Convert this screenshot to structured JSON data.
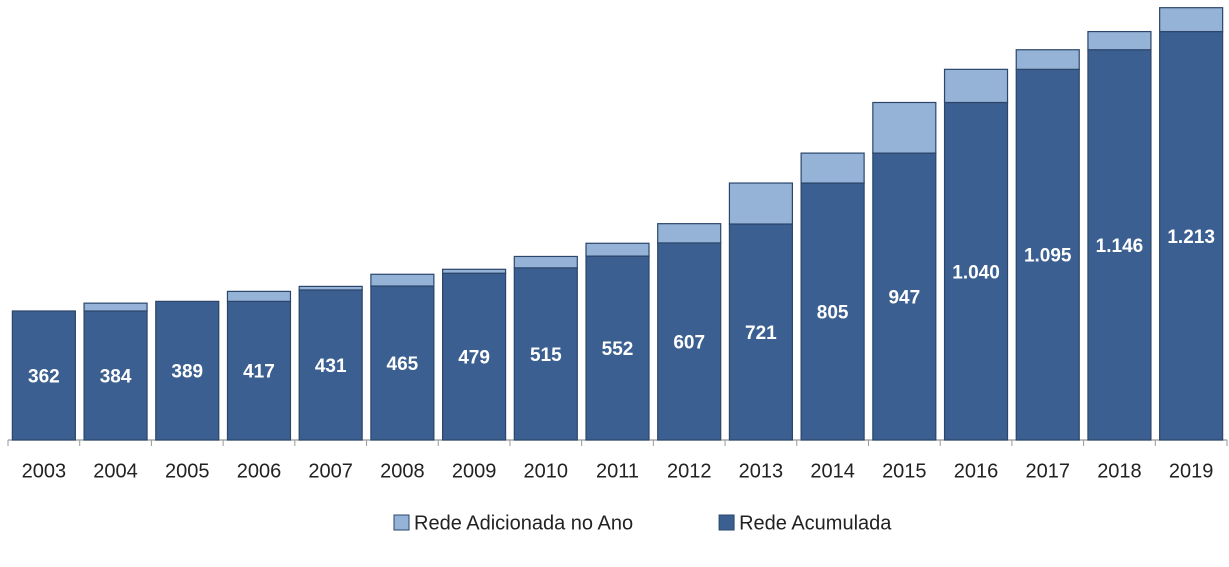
{
  "chart_data": {
    "type": "stacked_bar",
    "categories": [
      "2003",
      "2004",
      "2005",
      "2006",
      "2007",
      "2008",
      "2009",
      "2010",
      "2011",
      "2012",
      "2013",
      "2014",
      "2015",
      "2016",
      "2017",
      "2018",
      "2019"
    ],
    "series": [
      {
        "name": "Rede Acumulada",
        "color": "#3b5f90",
        "values": [
          362,
          362,
          389,
          389,
          421,
          432,
          468,
          483,
          516,
          553,
          606,
          721,
          805,
          947,
          1040,
          1095,
          1146
        ]
      },
      {
        "name": "Rede Adicionada no Ano",
        "color": "#95b3d7",
        "values": [
          0,
          22,
          0,
          28,
          10,
          33,
          11,
          32,
          36,
          54,
          115,
          84,
          142,
          93,
          55,
          51,
          67
        ]
      }
    ],
    "total_labels": [
      {
        "value": 362,
        "label": "362"
      },
      {
        "value": 384,
        "label": "384"
      },
      {
        "value": 389,
        "label": "389"
      },
      {
        "value": 417,
        "label": "417"
      },
      {
        "value": 431,
        "label": "431"
      },
      {
        "value": 465,
        "label": "465"
      },
      {
        "value": 479,
        "label": "479"
      },
      {
        "value": 515,
        "label": "515"
      },
      {
        "value": 552,
        "label": "552"
      },
      {
        "value": 607,
        "label": "607"
      },
      {
        "value": 721,
        "label": "721"
      },
      {
        "value": 805,
        "label": "805"
      },
      {
        "value": 947,
        "label": "947"
      },
      {
        "value": 1040,
        "label": "1.040"
      },
      {
        "value": 1095,
        "label": "1.095"
      },
      {
        "value": 1146,
        "label": "1.146"
      },
      {
        "value": 1213,
        "label": "1.213"
      }
    ],
    "ylim": [
      0,
      1230
    ],
    "legend_order": [
      1,
      0
    ],
    "legend": "bottom"
  }
}
